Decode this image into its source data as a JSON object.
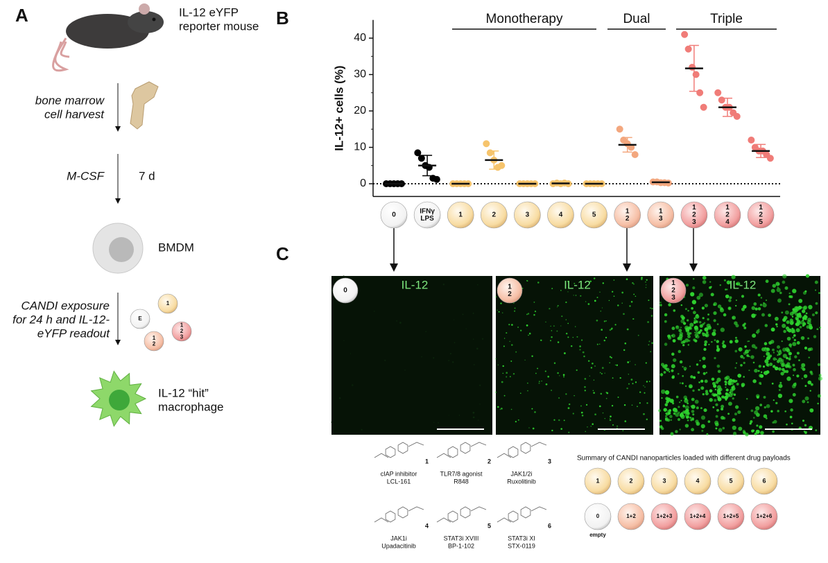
{
  "panel_a": {
    "letter": "A",
    "mouse_label": [
      "IL-12 eYFP",
      "reporter mouse"
    ],
    "harvest": [
      "bone marrow",
      "cell harvest"
    ],
    "culture": "M-CSF",
    "duration": "7 d",
    "cell_label": "BMDM",
    "exposure": [
      "CANDI exposure",
      "for 24 h and IL-12-",
      "eYFP readout"
    ],
    "particles": [
      [
        "E"
      ],
      [
        "1"
      ],
      [
        "1",
        "2",
        "3"
      ],
      [
        "1",
        "2"
      ]
    ],
    "hit_label": [
      "IL-12 “hit”",
      "macrophage"
    ]
  },
  "panel_b": {
    "letter": "B"
  },
  "chart_data": {
    "type": "dot",
    "y_label": "IL-12+ cells (%)",
    "ylim": [
      -3.5,
      45
    ],
    "yticks": [
      0,
      10,
      20,
      30,
      40
    ],
    "reference_line": 0,
    "bracket_labels": [
      "Monotherapy",
      "Dual",
      "Triple"
    ],
    "categories": [
      [
        "0"
      ],
      [
        "IFNγ",
        "LPS"
      ],
      [
        "1"
      ],
      [
        "2"
      ],
      [
        "3"
      ],
      [
        "4"
      ],
      [
        "5"
      ],
      [
        "1",
        "2"
      ],
      [
        "1",
        "3"
      ],
      [
        "1",
        "2",
        "3"
      ],
      [
        "1",
        "2",
        "4"
      ],
      [
        "1",
        "2",
        "5"
      ]
    ],
    "category_colors": [
      "#ffffff",
      "#ffffff",
      "#f8dca2",
      "#f8dca2",
      "#f8dca2",
      "#f8dca2",
      "#f8dca2",
      "#f6bfa6",
      "#f6bfa6",
      "#f2a0a0",
      "#f2a0a0",
      "#f2a0a0"
    ],
    "point_colors": [
      "#000000",
      "#000000",
      "#f6c46c",
      "#f6c46c",
      "#f6c46c",
      "#f6c46c",
      "#f6c46c",
      "#f3a77e",
      "#f3a77e",
      "#f07c78",
      "#f07c78",
      "#f07c78"
    ],
    "points": [
      [
        0,
        0,
        0,
        0,
        0
      ],
      [
        8.5,
        7,
        5,
        4.5,
        1.5,
        1.2
      ],
      [
        0,
        0,
        0,
        0,
        0
      ],
      [
        11,
        8.5,
        6.5,
        4.5,
        5
      ],
      [
        0,
        0,
        0,
        0,
        0
      ],
      [
        0,
        0.2,
        0,
        0.2,
        0
      ],
      [
        0,
        0,
        0,
        0,
        0
      ],
      [
        15,
        12,
        11,
        10,
        8
      ],
      [
        0.5,
        0.5,
        0.3,
        0.3,
        0.2
      ],
      [
        41,
        37,
        32,
        30,
        25,
        21
      ],
      [
        25,
        23,
        21,
        21,
        19.5,
        18.5
      ],
      [
        12,
        10,
        9,
        9,
        8,
        7
      ]
    ],
    "means": [
      0,
      5,
      0,
      6.5,
      0,
      0.1,
      0,
      10.7,
      0.4,
      31.7,
      21,
      9
    ],
    "sd": [
      0,
      2.8,
      0,
      2.5,
      0,
      0.1,
      0,
      2,
      0.1,
      6.3,
      2.5,
      1.8
    ]
  },
  "panel_c": {
    "letter": "C",
    "images": [
      {
        "badge": [
          "0"
        ],
        "label": "IL-12"
      },
      {
        "badge": [
          "1",
          "2"
        ],
        "label": "IL-12"
      },
      {
        "badge": [
          "1",
          "2",
          "3"
        ],
        "label": "IL-12"
      }
    ]
  },
  "structures": [
    {
      "number": "1",
      "name": [
        "cIAP inhibitor",
        "LCL-161"
      ]
    },
    {
      "number": "2",
      "name": [
        "TLR7/8 agonist",
        "R848"
      ]
    },
    {
      "number": "3",
      "name": [
        "JAK1/2i",
        "Ruxolitinib"
      ]
    },
    {
      "number": "4",
      "name": [
        "JAK1i",
        "Upadacitinib"
      ]
    },
    {
      "number": "5",
      "name": [
        "STAT3i XVIII",
        "BP-1-102"
      ]
    },
    {
      "number": "6",
      "name": [
        "STAT3i XI",
        "STX-0119"
      ]
    }
  ],
  "summary": {
    "title": "Summary of CANDI nanoparticles loaded with different drug payloads",
    "row1": [
      "1",
      "2",
      "3",
      "4",
      "5",
      "6"
    ],
    "row2": [
      "0",
      "1+2",
      "1+2+3",
      "1+2+4",
      "1+2+5",
      "1+2+6"
    ],
    "empty_label": "empty"
  }
}
